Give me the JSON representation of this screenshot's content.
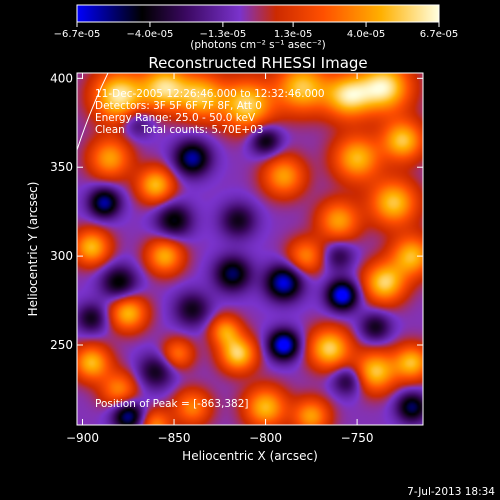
{
  "chart_data": {
    "type": "heatmap",
    "title": "Reconstructed RHESSI Image",
    "xlabel": "Heliocentric X (arcsec)",
    "ylabel": "Heliocentric Y (arcsec)",
    "xlim": [
      -903,
      -714
    ],
    "ylim": [
      205,
      403
    ],
    "xticks": [
      -900,
      -850,
      -800,
      -750
    ],
    "xtick_labels": [
      "-900",
      "-850",
      "-800",
      "-750"
    ],
    "yticks": [
      250,
      300,
      350,
      400
    ],
    "ytick_labels": [
      "250",
      "300",
      "350",
      "400"
    ],
    "colorbar": {
      "range": [
        -6.7e-05,
        6.7e-05
      ],
      "ticks": [
        -6.7e-05,
        -4e-05,
        -1.3e-05,
        1.3e-05,
        4e-05,
        6.7e-05
      ],
      "tick_labels": [
        "-6.7e-05",
        "-4.0e-05",
        "-1.3e-05",
        "1.3e-05",
        "4.0e-05",
        "6.7e-05"
      ],
      "units": "(photons cm⁻² s⁻¹ asec⁻²)",
      "colors": [
        "#0000ff",
        "#000000",
        "#3a0860",
        "#7a33cc",
        "#cc2a00",
        "#ff5000",
        "#ffb000",
        "#ffffe0"
      ]
    },
    "annotations": [
      "11-Dec-2005 12:26:46.000 to 12:32:46.000",
      "Detectors: 3F 5F 6F 7F 8F, Att 0",
      "Energy Range: 25.0 - 50.0 keV",
      "Clean     Total counts: 5.70E+03",
      "Position of Peak = [-863,382]"
    ],
    "blobs": [
      {
        "x": -880,
        "y": 390,
        "v": 1.0,
        "s": 10
      },
      {
        "x": -855,
        "y": 395,
        "v": 0.9,
        "s": 9
      },
      {
        "x": -835,
        "y": 390,
        "v": 0.8,
        "s": 9
      },
      {
        "x": -810,
        "y": 385,
        "v": 0.9,
        "s": 10
      },
      {
        "x": -780,
        "y": 395,
        "v": 0.85,
        "s": 10
      },
      {
        "x": -755,
        "y": 390,
        "v": 0.9,
        "s": 9
      },
      {
        "x": -735,
        "y": 395,
        "v": 1.0,
        "s": 10
      },
      {
        "x": -725,
        "y": 365,
        "v": 0.85,
        "s": 8
      },
      {
        "x": -750,
        "y": 355,
        "v": 0.8,
        "s": 9
      },
      {
        "x": -790,
        "y": 345,
        "v": 0.7,
        "s": 8
      },
      {
        "x": -860,
        "y": 340,
        "v": 0.8,
        "s": 7
      },
      {
        "x": -885,
        "y": 355,
        "v": 0.7,
        "s": 8
      },
      {
        "x": -730,
        "y": 330,
        "v": 0.85,
        "s": 9
      },
      {
        "x": -760,
        "y": 320,
        "v": 0.7,
        "s": 8
      },
      {
        "x": -720,
        "y": 300,
        "v": 0.8,
        "s": 8
      },
      {
        "x": -735,
        "y": 285,
        "v": 0.9,
        "s": 8
      },
      {
        "x": -778,
        "y": 300,
        "v": 0.6,
        "s": 7
      },
      {
        "x": -855,
        "y": 300,
        "v": 0.75,
        "s": 7
      },
      {
        "x": -895,
        "y": 305,
        "v": 0.8,
        "s": 7
      },
      {
        "x": -875,
        "y": 268,
        "v": 0.8,
        "s": 7
      },
      {
        "x": -822,
        "y": 258,
        "v": 0.65,
        "s": 6
      },
      {
        "x": -815,
        "y": 245,
        "v": 0.9,
        "s": 7
      },
      {
        "x": -848,
        "y": 245,
        "v": 0.55,
        "s": 6
      },
      {
        "x": -895,
        "y": 240,
        "v": 0.8,
        "s": 7
      },
      {
        "x": -765,
        "y": 248,
        "v": 0.9,
        "s": 8
      },
      {
        "x": -740,
        "y": 235,
        "v": 0.85,
        "s": 8
      },
      {
        "x": -720,
        "y": 240,
        "v": 0.8,
        "s": 7
      },
      {
        "x": -800,
        "y": 215,
        "v": 0.8,
        "s": 8
      },
      {
        "x": -775,
        "y": 210,
        "v": 0.7,
        "s": 7
      },
      {
        "x": -880,
        "y": 225,
        "v": 0.6,
        "s": 7
      },
      {
        "x": -840,
        "y": 215,
        "v": 0.6,
        "s": 7
      },
      {
        "x": -860,
        "y": 205,
        "v": 0.6,
        "s": 6
      },
      {
        "x": -888,
        "y": 330,
        "v": -0.8,
        "s": 6
      },
      {
        "x": -840,
        "y": 355,
        "v": -0.8,
        "s": 7
      },
      {
        "x": -800,
        "y": 365,
        "v": -0.6,
        "s": 6
      },
      {
        "x": -850,
        "y": 320,
        "v": -0.6,
        "s": 7
      },
      {
        "x": -815,
        "y": 320,
        "v": -0.5,
        "s": 7
      },
      {
        "x": -818,
        "y": 290,
        "v": -0.7,
        "s": 7
      },
      {
        "x": -790,
        "y": 285,
        "v": -0.9,
        "s": 7
      },
      {
        "x": -758,
        "y": 278,
        "v": -1.0,
        "s": 6
      },
      {
        "x": -790,
        "y": 250,
        "v": -1.0,
        "s": 6
      },
      {
        "x": -840,
        "y": 270,
        "v": -0.5,
        "s": 7
      },
      {
        "x": -880,
        "y": 285,
        "v": -0.6,
        "s": 7
      },
      {
        "x": -895,
        "y": 265,
        "v": -0.5,
        "s": 6
      },
      {
        "x": -860,
        "y": 235,
        "v": -0.5,
        "s": 7
      },
      {
        "x": -875,
        "y": 210,
        "v": -0.8,
        "s": 6
      },
      {
        "x": -740,
        "y": 260,
        "v": -0.5,
        "s": 6
      },
      {
        "x": -755,
        "y": 230,
        "v": -0.5,
        "s": 6
      },
      {
        "x": -720,
        "y": 215,
        "v": -0.7,
        "s": 6
      },
      {
        "x": -760,
        "y": 300,
        "v": -0.4,
        "s": 6
      },
      {
        "x": -870,
        "y": 375,
        "v": -0.4,
        "s": 6
      }
    ]
  },
  "footer": {
    "timestamp": "7-Jul-2013 18:34"
  }
}
